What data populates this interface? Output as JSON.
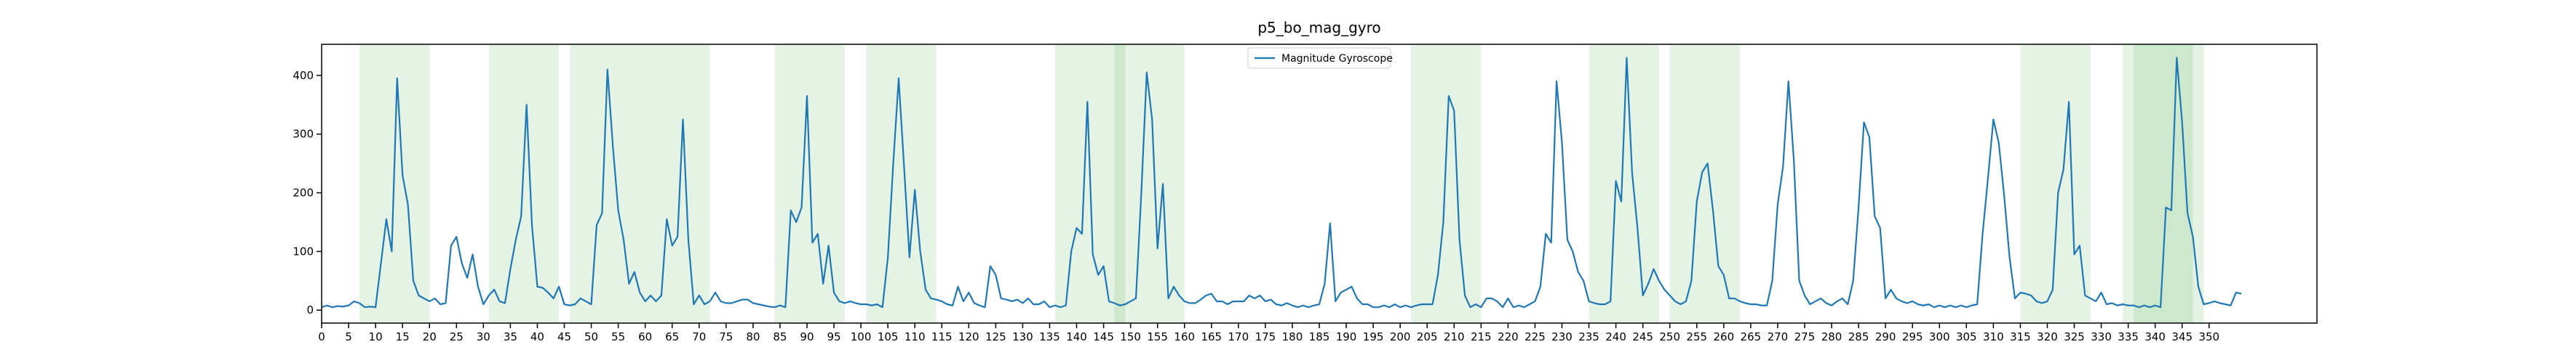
{
  "chart_data": {
    "type": "line",
    "title": "p5_bo_mag_gyro",
    "legend_position": "upper center",
    "series": [
      {
        "name": "Magnitude Gyroscope",
        "color": "#1f77b4",
        "values": [
          5,
          8,
          5,
          7,
          6,
          8,
          15,
          12,
          5,
          6,
          5,
          80,
          155,
          100,
          395,
          230,
          180,
          50,
          25,
          20,
          15,
          20,
          10,
          12,
          110,
          125,
          80,
          55,
          95,
          40,
          10,
          25,
          35,
          15,
          12,
          70,
          120,
          160,
          350,
          145,
          40,
          38,
          30,
          20,
          40,
          10,
          8,
          10,
          20,
          15,
          10,
          145,
          165,
          410,
          280,
          170,
          120,
          45,
          65,
          30,
          15,
          25,
          15,
          25,
          155,
          110,
          125,
          325,
          120,
          10,
          25,
          10,
          15,
          30,
          15,
          12,
          12,
          15,
          18,
          18,
          12,
          10,
          8,
          6,
          5,
          8,
          5,
          170,
          150,
          175,
          365,
          115,
          130,
          45,
          110,
          30,
          15,
          12,
          15,
          12,
          10,
          10,
          8,
          10,
          5,
          90,
          250,
          395,
          245,
          90,
          205,
          100,
          35,
          20,
          18,
          15,
          10,
          8,
          40,
          15,
          30,
          12,
          8,
          5,
          75,
          60,
          20,
          18,
          15,
          18,
          12,
          20,
          10,
          10,
          15,
          5,
          8,
          5,
          8,
          100,
          140,
          130,
          355,
          95,
          60,
          75,
          15,
          12,
          8,
          10,
          15,
          20,
          200,
          405,
          325,
          105,
          215,
          20,
          40,
          25,
          15,
          12,
          12,
          18,
          25,
          28,
          15,
          15,
          10,
          15,
          15,
          15,
          25,
          20,
          25,
          15,
          18,
          10,
          8,
          12,
          8,
          5,
          8,
          5,
          8,
          10,
          45,
          148,
          15,
          30,
          35,
          40,
          20,
          10,
          10,
          5,
          5,
          8,
          5,
          10,
          5,
          8,
          5,
          8,
          10,
          10,
          10,
          60,
          150,
          365,
          340,
          120,
          25,
          5,
          10,
          5,
          20,
          20,
          15,
          5,
          20,
          5,
          8,
          5,
          10,
          15,
          40,
          130,
          115,
          390,
          285,
          120,
          100,
          65,
          50,
          15,
          12,
          10,
          10,
          15,
          220,
          185,
          430,
          235,
          140,
          25,
          45,
          70,
          50,
          35,
          25,
          15,
          10,
          15,
          50,
          185,
          235,
          250,
          170,
          75,
          60,
          20,
          20,
          15,
          12,
          10,
          10,
          8,
          8,
          50,
          180,
          245,
          390,
          255,
          50,
          25,
          10,
          15,
          20,
          12,
          8,
          15,
          20,
          10,
          50,
          175,
          320,
          295,
          160,
          140,
          20,
          35,
          20,
          15,
          12,
          15,
          10,
          8,
          10,
          5,
          8,
          5,
          8,
          5,
          8,
          5,
          8,
          10,
          130,
          225,
          325,
          285,
          195,
          90,
          20,
          30,
          28,
          25,
          15,
          12,
          15,
          35,
          200,
          240,
          355,
          95,
          110,
          25,
          20,
          15,
          30,
          10,
          12,
          8,
          10,
          8,
          8,
          5,
          8,
          5,
          8,
          5,
          175,
          170,
          430,
          320,
          165,
          125,
          40,
          10,
          12,
          15,
          12,
          10,
          8,
          30,
          28
        ]
      }
    ],
    "highlight_spans": [
      [
        7,
        20
      ],
      [
        31,
        44
      ],
      [
        46,
        59
      ],
      [
        59,
        72
      ],
      [
        84,
        97
      ],
      [
        101,
        114
      ],
      [
        136,
        149
      ],
      [
        147,
        160
      ],
      [
        202,
        215
      ],
      [
        235,
        248
      ],
      [
        250,
        263
      ],
      [
        315,
        328
      ],
      [
        334,
        347
      ],
      [
        336,
        349
      ]
    ],
    "highlight_color": "#2ca02c",
    "xlim": [
      0,
      370
    ],
    "xticks": [
      0,
      5,
      10,
      15,
      20,
      25,
      30,
      35,
      40,
      45,
      50,
      55,
      60,
      65,
      70,
      75,
      80,
      85,
      90,
      95,
      100,
      105,
      110,
      115,
      120,
      125,
      130,
      135,
      140,
      145,
      150,
      155,
      160,
      165,
      170,
      175,
      180,
      185,
      190,
      195,
      200,
      205,
      210,
      215,
      220,
      225,
      230,
      235,
      240,
      245,
      250,
      255,
      260,
      265,
      270,
      275,
      280,
      285,
      290,
      295,
      300,
      305,
      310,
      315,
      320,
      325,
      330,
      335,
      340,
      345,
      350
    ],
    "ylim": [
      -22,
      453
    ],
    "yticks": [
      0,
      100,
      200,
      300,
      400
    ]
  }
}
